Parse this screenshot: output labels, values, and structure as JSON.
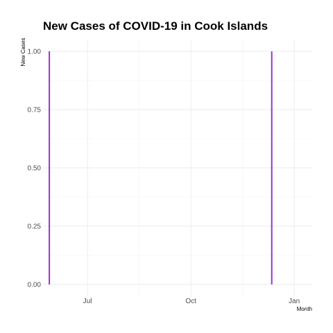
{
  "chart_data": {
    "type": "bar",
    "title": "New Cases of COVID-19 in Cook Islands",
    "xlabel": "Month",
    "ylabel": "New Cases",
    "x_type": "date",
    "xlim": [
      "2020-05-23",
      "2021-01-17"
    ],
    "ylim": [
      0,
      1
    ],
    "y_ticks": [
      "0.00",
      "0.25",
      "0.50",
      "0.75",
      "1.00"
    ],
    "x_ticks": [
      {
        "label": "Jul",
        "date": "2020-07-01"
      },
      {
        "label": "Oct",
        "date": "2020-10-01"
      },
      {
        "label": "Jan",
        "date": "2021-01-01"
      }
    ],
    "series": [
      {
        "values": [
          {
            "x": "2020-05-28",
            "y": 1
          },
          {
            "x": "2020-12-12",
            "y": 1
          }
        ],
        "color": "#9A32CD"
      }
    ],
    "grid": true,
    "legend": "none"
  }
}
